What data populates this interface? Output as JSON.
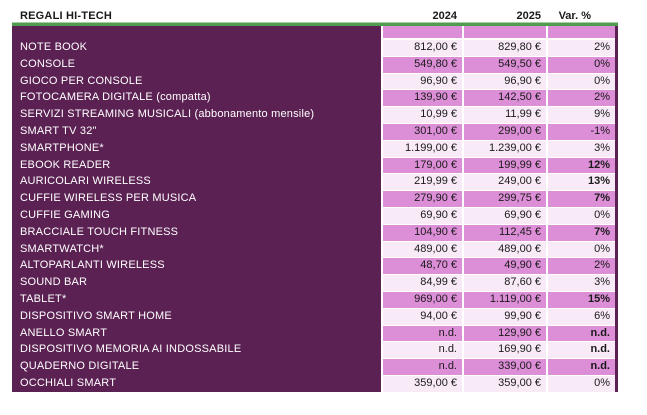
{
  "header": {
    "title": "REGALI HI-TECH",
    "col_2024": "2024",
    "col_2025": "2025",
    "col_var": "Var. %"
  },
  "colors": {
    "purple": "#5B2153",
    "pink_medium": "#DC8ED7",
    "pink_light": "#F8EAF7",
    "green": "#4F9C50"
  },
  "rows": [
    {
      "label": "NOTE BOOK",
      "y2024": "812,00 €",
      "y2025": "829,80 €",
      "var": "2%",
      "var_bold": false
    },
    {
      "label": "CONSOLE",
      "y2024": "549,80 €",
      "y2025": "549,50 €",
      "var": "0%",
      "var_bold": false
    },
    {
      "label": "GIOCO PER CONSOLE",
      "y2024": "96,90 €",
      "y2025": "96,90 €",
      "var": "0%",
      "var_bold": false
    },
    {
      "label": "FOTOCAMERA DIGITALE (compatta)",
      "y2024": "139,90 €",
      "y2025": "142,50 €",
      "var": "2%",
      "var_bold": false
    },
    {
      "label": "SERVIZI STREAMING MUSICALI (abbonamento mensile)",
      "y2024": "10,99 €",
      "y2025": "11,99 €",
      "var": "9%",
      "var_bold": false
    },
    {
      "label": "SMART TV 32\"",
      "y2024": "301,00 €",
      "y2025": "299,00 €",
      "var": "-1%",
      "var_bold": false
    },
    {
      "label": "SMARTPHONE*",
      "y2024": "1.199,00 €",
      "y2025": "1.239,00 €",
      "var": "3%",
      "var_bold": false
    },
    {
      "label": "EBOOK READER",
      "y2024": "179,00 €",
      "y2025": "199,99 €",
      "var": "12%",
      "var_bold": true
    },
    {
      "label": "AURICOLARI WIRELESS",
      "y2024": "219,99 €",
      "y2025": "249,00 €",
      "var": "13%",
      "var_bold": true
    },
    {
      "label": "CUFFIE WIRELESS PER MUSICA",
      "y2024": "279,90 €",
      "y2025": "299,75 €",
      "var": "7%",
      "var_bold": true
    },
    {
      "label": "CUFFIE GAMING",
      "y2024": "69,90 €",
      "y2025": "69,90 €",
      "var": "0%",
      "var_bold": false
    },
    {
      "label": "BRACCIALE TOUCH FITNESS",
      "y2024": "104,90 €",
      "y2025": "112,45 €",
      "var": "7%",
      "var_bold": true
    },
    {
      "label": "SMARTWATCH*",
      "y2024": "489,00 €",
      "y2025": "489,00 €",
      "var": "0%",
      "var_bold": false
    },
    {
      "label": "ALTOPARLANTI WIRELESS",
      "y2024": "48,70 €",
      "y2025": "49,90 €",
      "var": "2%",
      "var_bold": false
    },
    {
      "label": "SOUND BAR",
      "y2024": "84,99 €",
      "y2025": "87,60 €",
      "var": "3%",
      "var_bold": false
    },
    {
      "label": "TABLET*",
      "y2024": "969,00 €",
      "y2025": "1.119,00 €",
      "var": "15%",
      "var_bold": true
    },
    {
      "label": "DISPOSITIVO SMART HOME",
      "y2024": "94,00 €",
      "y2025": "99,90 €",
      "var": "6%",
      "var_bold": false
    },
    {
      "label": "ANELLO SMART",
      "y2024": "n.d.",
      "y2025": "129,90 €",
      "var": "n.d.",
      "var_bold": true
    },
    {
      "label": "DISPOSITIVO MEMORIA AI INDOSSABILE",
      "y2024": "n.d.",
      "y2025": "169,90 €",
      "var": "n.d.",
      "var_bold": true
    },
    {
      "label": "QUADERNO DIGITALE",
      "y2024": "n.d.",
      "y2025": "339,00 €",
      "var": "n.d.",
      "var_bold": true
    },
    {
      "label": "OCCHIALI SMART",
      "y2024": "359,00 €",
      "y2025": "359,00 €",
      "var": "0%",
      "var_bold": false
    }
  ]
}
